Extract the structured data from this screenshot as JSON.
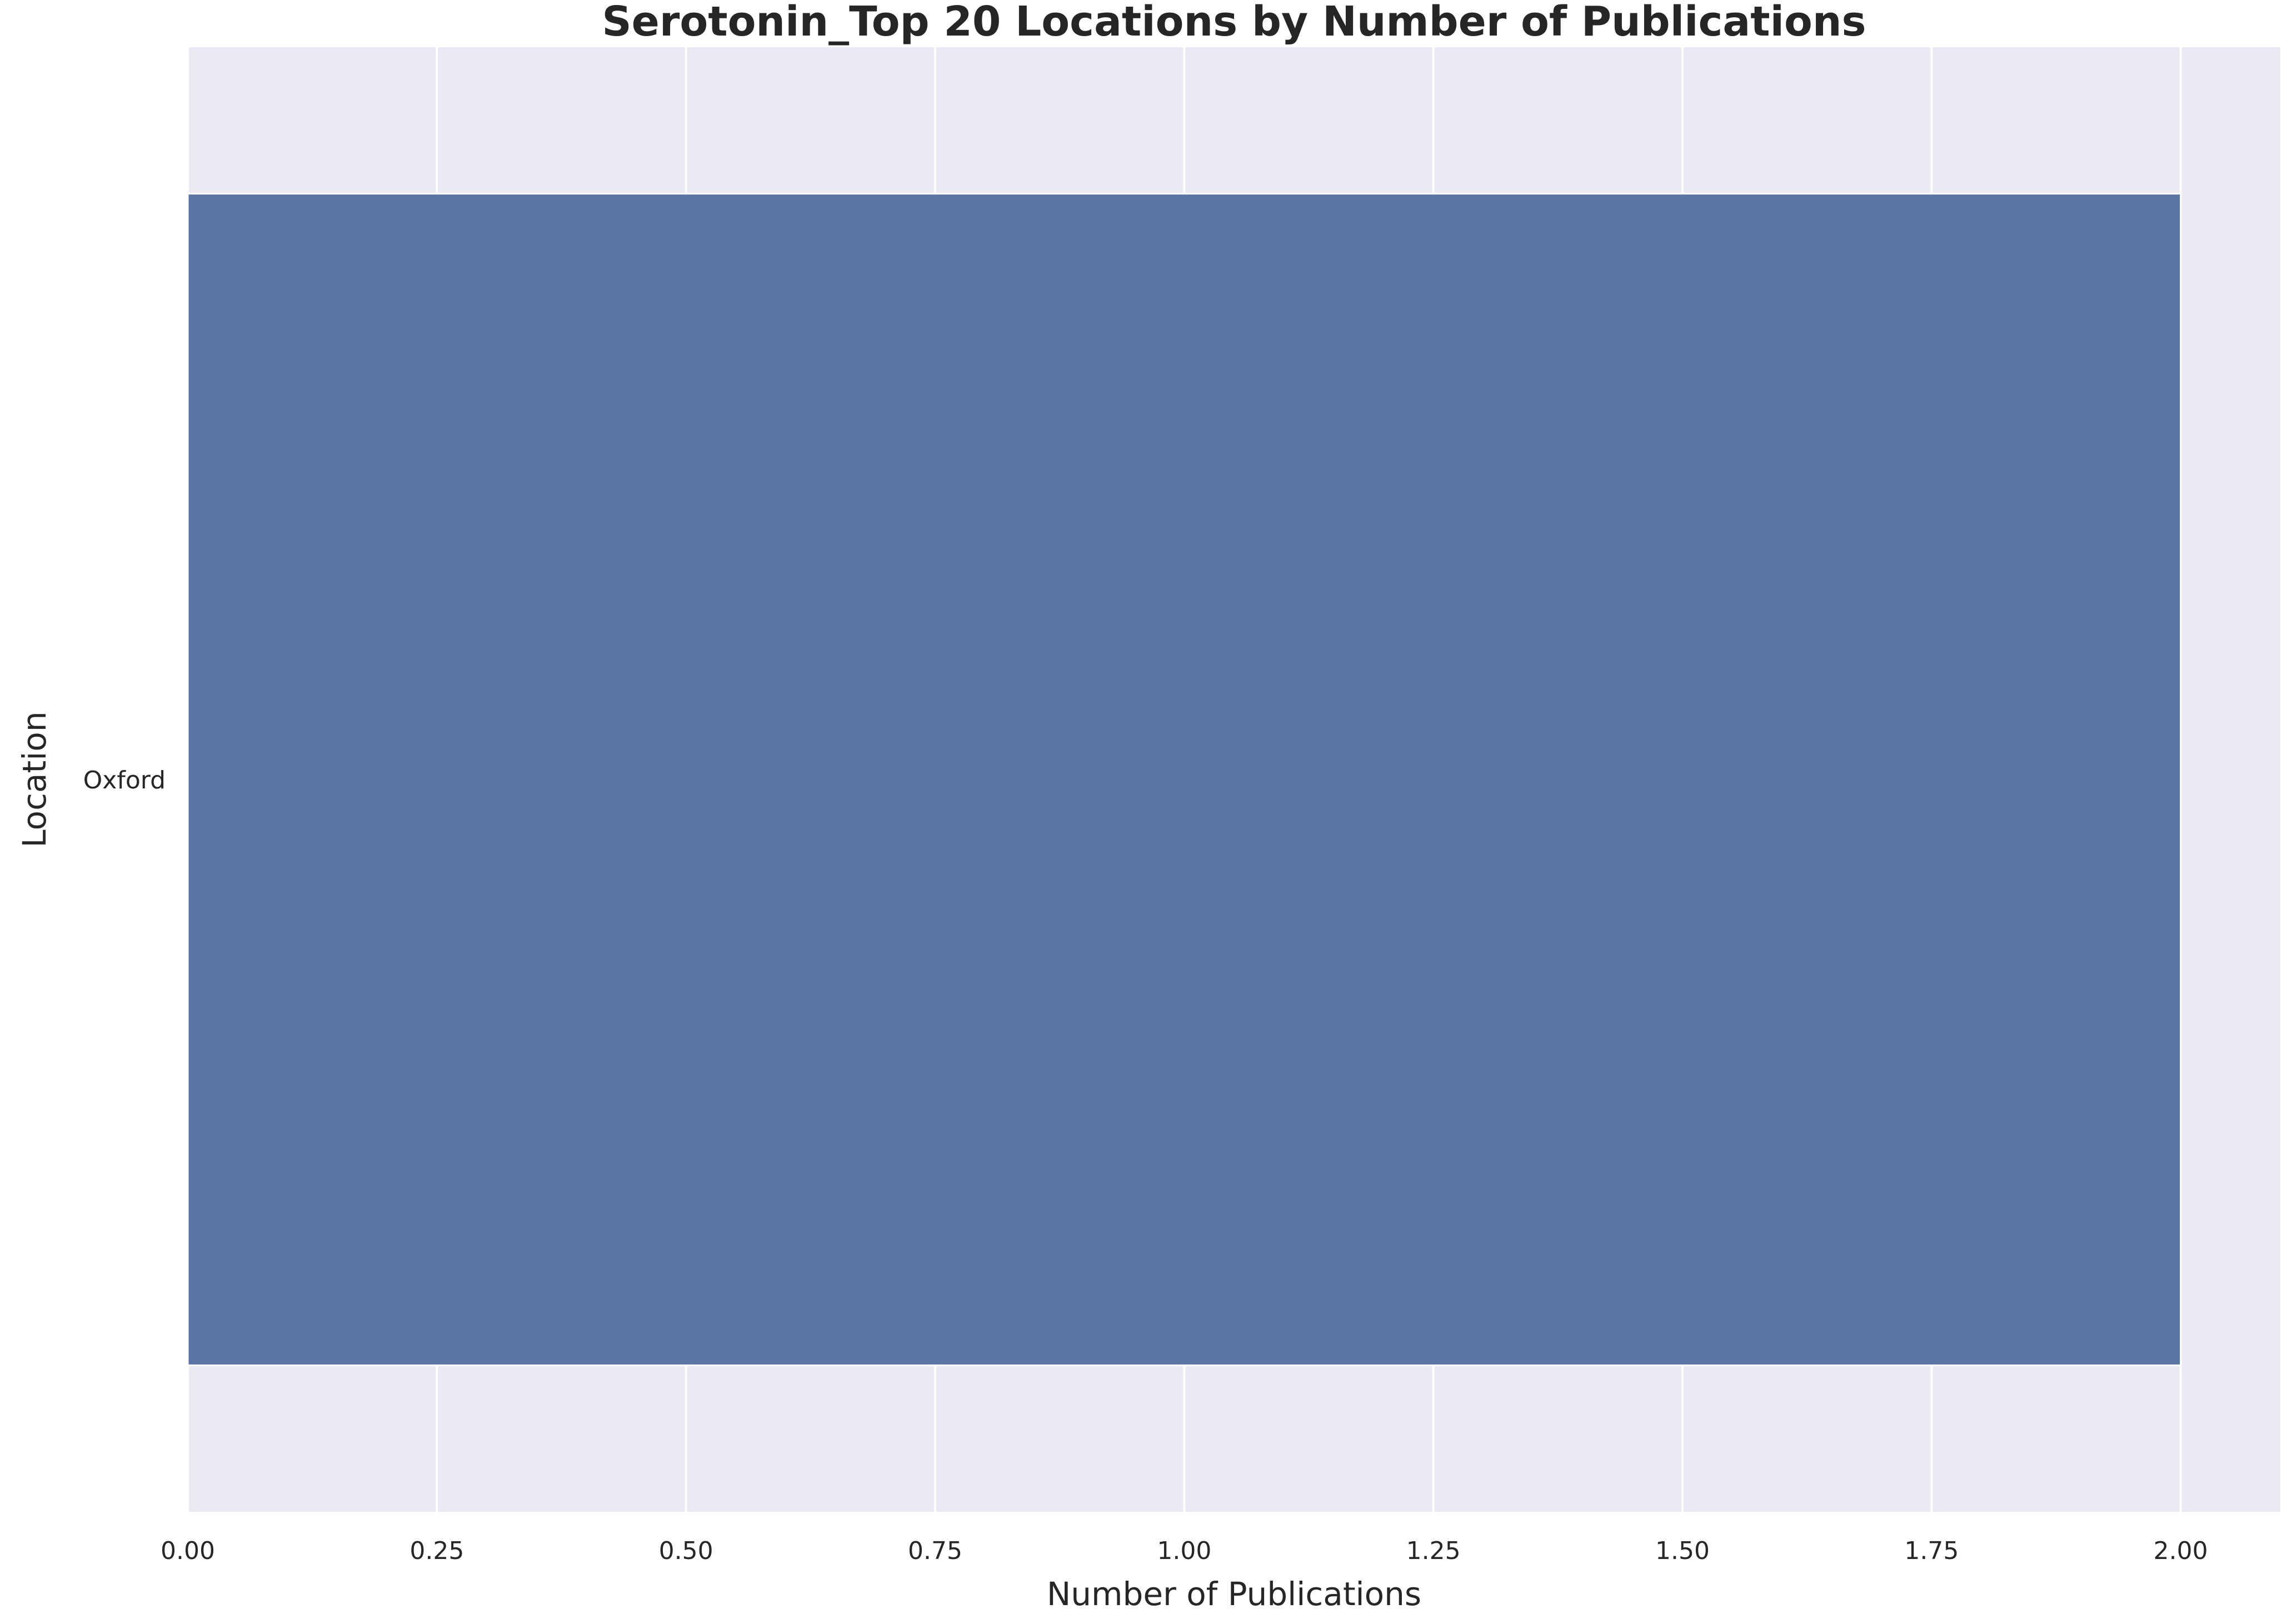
{
  "chart_data": {
    "type": "bar",
    "orientation": "horizontal",
    "title": "Serotonin_Top 20 Locations by Number of Publications",
    "xlabel": "Number of Publications",
    "ylabel": "Location",
    "categories": [
      "Oxford"
    ],
    "values": [
      2
    ],
    "xlim": [
      0,
      2.1
    ],
    "xticks": [
      0.0,
      0.25,
      0.5,
      0.75,
      1.0,
      1.25,
      1.5,
      1.75,
      2.0
    ],
    "xtick_labels": [
      "0.00",
      "0.25",
      "0.50",
      "0.75",
      "1.00",
      "1.25",
      "1.50",
      "1.75",
      "2.00"
    ],
    "grid": true,
    "colors": {
      "bar": "#5975a4",
      "plot_background": "#eaeaf2",
      "grid": "#ffffff",
      "text": "#262626"
    }
  }
}
